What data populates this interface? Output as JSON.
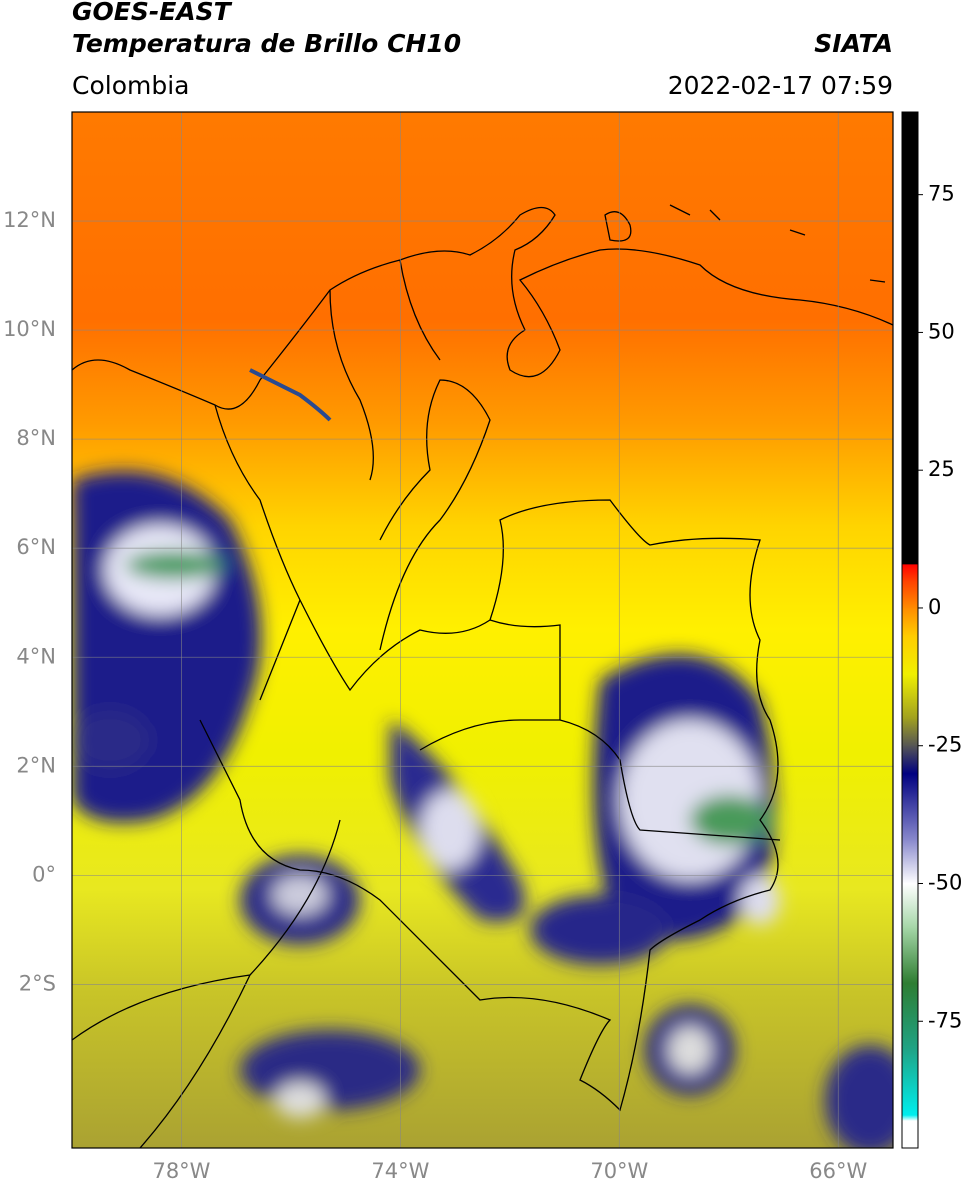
{
  "header": {
    "title": "GOES-EAST",
    "subtitle": "Temperatura de Brillo CH10",
    "region": "Colombia",
    "source": "SIATA",
    "datetime": "2022-02-17 07:59"
  },
  "map": {
    "lon_range": [
      -80,
      -65
    ],
    "lat_range": [
      -5,
      14
    ],
    "lon_ticks": [
      {
        "value": -78,
        "label": "78°W"
      },
      {
        "value": -74,
        "label": "74°W"
      },
      {
        "value": -70,
        "label": "70°W"
      },
      {
        "value": -66,
        "label": "66°W"
      }
    ],
    "lat_ticks": [
      {
        "value": 12,
        "label": "12°N"
      },
      {
        "value": 10,
        "label": "10°N"
      },
      {
        "value": 8,
        "label": "8°N"
      },
      {
        "value": 6,
        "label": "6°N"
      },
      {
        "value": 4,
        "label": "4°N"
      },
      {
        "value": 2,
        "label": "2°N"
      },
      {
        "value": 0,
        "label": "0°"
      },
      {
        "value": -2,
        "label": "2°S"
      }
    ]
  },
  "colorbar": {
    "range": [
      -98,
      90
    ],
    "ticks": [
      75,
      50,
      25,
      0,
      -25,
      -50,
      -75
    ],
    "stops": [
      {
        "value": -98,
        "color": "#ffffff"
      },
      {
        "value": -93,
        "color": "#ffffff"
      },
      {
        "value": -92,
        "color": "#00eeee"
      },
      {
        "value": -80,
        "color": "#1fa385"
      },
      {
        "value": -68,
        "color": "#2e7d32"
      },
      {
        "value": -58,
        "color": "#a5d6a7"
      },
      {
        "value": -50,
        "color": "#ffffff"
      },
      {
        "value": -42,
        "color": "#8888cc"
      },
      {
        "value": -30,
        "color": "#000080"
      },
      {
        "value": -25,
        "color": "#555555"
      },
      {
        "value": -20,
        "color": "#a0a020"
      },
      {
        "value": -12,
        "color": "#f0f000"
      },
      {
        "value": -5,
        "color": "#ffcc00"
      },
      {
        "value": 0,
        "color": "#ff8c00"
      },
      {
        "value": 5,
        "color": "#ff4000"
      },
      {
        "value": 8,
        "color": "#ff0000"
      },
      {
        "value": 8,
        "color": "#000000"
      },
      {
        "value": 90,
        "color": "#000000"
      }
    ]
  }
}
